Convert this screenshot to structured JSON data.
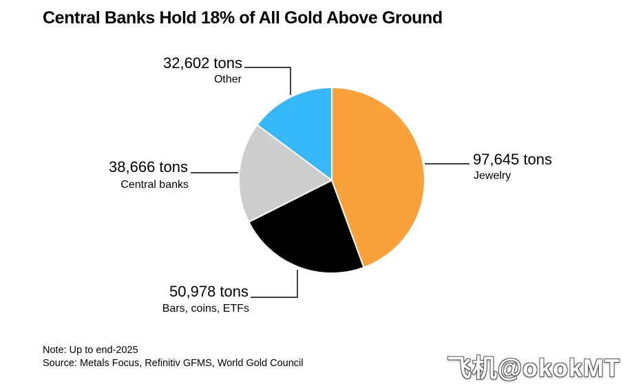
{
  "chart_data": {
    "type": "pie",
    "title": "Central Banks Hold 18% of All Gold Above Ground",
    "start": "12 o'clock, clockwise",
    "slices": [
      {
        "key": "jewelry",
        "category": "Jewelry",
        "value": 97645,
        "value_label": "97,645 tons",
        "color": "#F9A23A"
      },
      {
        "key": "bars",
        "category": "Bars, coins, ETFs",
        "value": 50978,
        "value_label": "50,978 tons",
        "color": "#000000"
      },
      {
        "key": "central",
        "category": "Central banks",
        "value": 38666,
        "value_label": "38,666 tons",
        "color": "#CDCDCD"
      },
      {
        "key": "other",
        "category": "Other",
        "value": 32602,
        "value_label": "32,602 tons",
        "color": "#36B7F8"
      }
    ]
  },
  "note": "Note: Up to end-2025",
  "source": "Source: Metals Focus, Refinitiv GFMS, World Gold Council",
  "watermark": "飞机@okokMT"
}
